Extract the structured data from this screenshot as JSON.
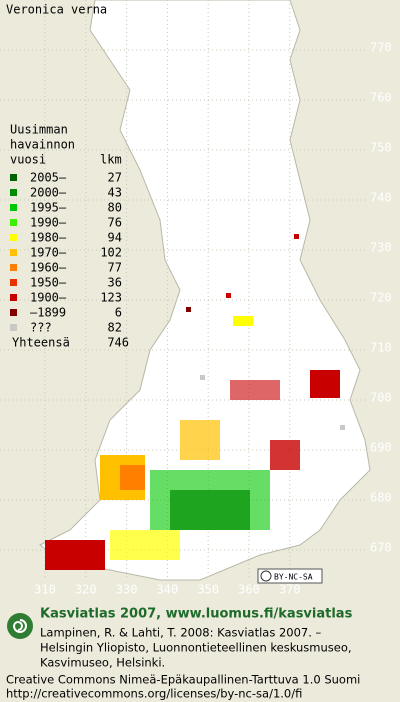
{
  "title": "Veronica verna",
  "legend": {
    "heading": [
      "Uusimman",
      "havainnon",
      "vuosi"
    ],
    "count_heading": "lkm",
    "rows": [
      {
        "label": "2005–",
        "count": 27,
        "color": "#006400"
      },
      {
        "label": "2000–",
        "count": 43,
        "color": "#008c00"
      },
      {
        "label": "1995–",
        "count": 80,
        "color": "#00c800"
      },
      {
        "label": "1990–",
        "count": 76,
        "color": "#3cf000"
      },
      {
        "label": "1980–",
        "count": 94,
        "color": "#ffff00"
      },
      {
        "label": "1970–",
        "count": 102,
        "color": "#ffc000"
      },
      {
        "label": "1960–",
        "count": 77,
        "color": "#ff8000"
      },
      {
        "label": "1950–",
        "count": 36,
        "color": "#e83000"
      },
      {
        "label": "1900–",
        "count": 123,
        "color": "#c80000"
      },
      {
        "label": "–1899",
        "count": 6,
        "color": "#800000"
      },
      {
        "label": "???",
        "count": 82,
        "color": "#c8c8c8"
      }
    ],
    "total_label": "Yhteensä",
    "total": 746
  },
  "grid": {
    "x_labels": [
      310,
      320,
      330,
      340,
      350,
      360,
      370
    ],
    "y_labels": [
      770,
      760,
      750,
      740,
      730,
      720,
      710,
      700,
      690,
      680,
      670
    ]
  },
  "badge": "BY-NC-SA",
  "footer": {
    "headline": "Kasviatlas 2007, www.luomus.fi/kasviatlas",
    "citation": [
      "Lampinen, R. & Lahti, T. 2008: Kasviatlas 2007. –",
      "Helsingin Yliopisto, Luonnontieteellinen keskusmuseo,",
      "Kasvimuseo, Helsinki."
    ],
    "license": [
      "Creative Commons Nimeä-Epäkaupallinen-Tarttuva 1.0 Suomi",
      "http://creativecommons.org/licenses/by-nc-sa/1.0/fi"
    ]
  }
}
